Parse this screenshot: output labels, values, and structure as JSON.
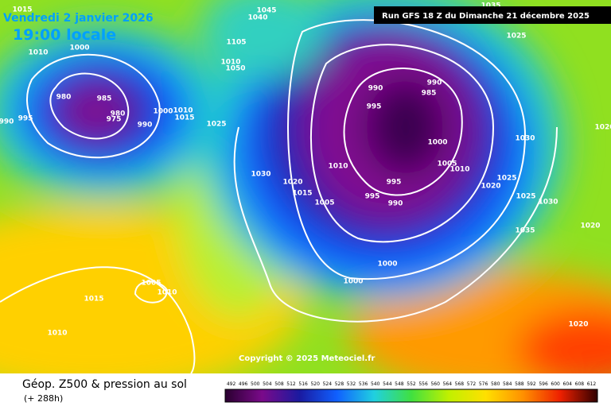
{
  "header": {
    "date": "Vendredi 2 janvier 2026",
    "time": "19:00 locale",
    "run": "Run GFS 18 Z du Dimanche 21 décembre 2025"
  },
  "copyright": "Copyright © 2025 Meteociel.fr",
  "footer": {
    "title": "Géop. Z500 & pression au sol",
    "subtitle": "(+ 288h)"
  },
  "legend": {
    "labels": [
      492,
      496,
      500,
      504,
      508,
      512,
      516,
      520,
      524,
      528,
      532,
      536,
      540,
      544,
      548,
      552,
      556,
      560,
      564,
      568,
      572,
      576,
      580,
      584,
      588,
      592,
      596,
      600,
      604,
      608,
      612
    ]
  },
  "isobars": [
    "1015",
    "1010",
    "1000",
    "980",
    "985",
    "980",
    "975",
    "990",
    "995",
    "990",
    "1000",
    "1010",
    "1015",
    "1025",
    "1045",
    "1040",
    "1105",
    "1010",
    "1050",
    "1030",
    "1020",
    "1015",
    "1005",
    "1010",
    "990",
    "995",
    "990",
    "985",
    "1000",
    "1005",
    "1010",
    "995",
    "995",
    "990",
    "1020",
    "1025",
    "1025",
    "1030",
    "1030",
    "1025",
    "1035",
    "1035",
    "1020",
    "1000",
    "1000",
    "1005",
    "1010",
    "1015",
    "1010",
    "1020",
    "1020"
  ]
}
